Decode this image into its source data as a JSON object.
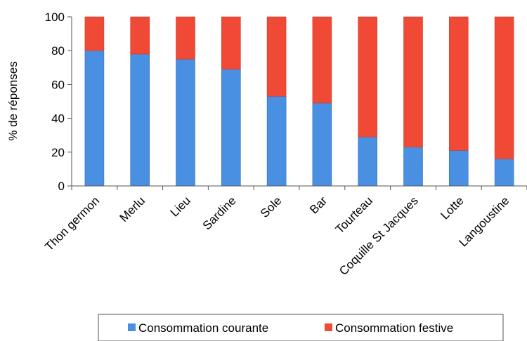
{
  "chart_data": {
    "type": "bar",
    "stacked": true,
    "orientation": "vertical",
    "categories": [
      "Thon germon",
      "Merlu",
      "Lieu",
      "Sardine",
      "Sole",
      "Bar",
      "Tourteau",
      "Coquille St Jacques",
      "Lotte",
      "Langoustine"
    ],
    "series": [
      {
        "name": "Consommation courante",
        "color": "#4a90e2",
        "values": [
          80,
          78,
          75,
          69,
          53,
          49,
          29,
          23,
          21,
          16
        ]
      },
      {
        "name": "Consommation festive",
        "color": "#f04a36",
        "values": [
          20,
          22,
          25,
          31,
          47,
          51,
          71,
          77,
          79,
          84
        ]
      }
    ],
    "title": "",
    "xlabel": "",
    "ylabel": "% de réponses",
    "ylim": [
      0,
      100
    ],
    "yticks": [
      0,
      20,
      40,
      60,
      80,
      100
    ],
    "grid": false,
    "legend_position": "bottom"
  }
}
